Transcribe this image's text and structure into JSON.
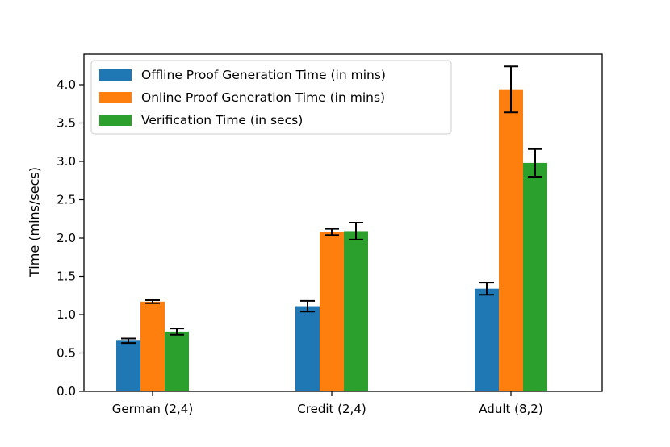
{
  "chart_data": {
    "type": "bar",
    "title": "",
    "xlabel": "",
    "ylabel": "Time (mins/secs)",
    "categories": [
      "German (2,4)",
      "Credit (2,4)",
      "Adult (8,2)"
    ],
    "ylim": [
      0,
      4.4
    ],
    "yticks": [
      0.0,
      0.5,
      1.0,
      1.5,
      2.0,
      2.5,
      3.0,
      3.5,
      4.0
    ],
    "ytick_labels": [
      "0.0",
      "0.5",
      "1.0",
      "1.5",
      "2.0",
      "2.5",
      "3.0",
      "3.5",
      "4.0"
    ],
    "grid": false,
    "legend_position": "top-left",
    "series": [
      {
        "name": "Offline Proof Generation Time (in mins)",
        "color": "#1f77b4",
        "values": [
          0.66,
          1.11,
          1.34
        ],
        "errors": [
          0.03,
          0.07,
          0.08
        ]
      },
      {
        "name": "Online Proof Generation Time (in mins)",
        "color": "#ff7f0e",
        "values": [
          1.17,
          2.08,
          3.94
        ],
        "errors": [
          0.02,
          0.04,
          0.3
        ]
      },
      {
        "name": "Verification Time (in secs)",
        "color": "#2ca02c",
        "values": [
          0.78,
          2.09,
          2.98
        ],
        "errors": [
          0.04,
          0.11,
          0.18
        ]
      }
    ]
  }
}
